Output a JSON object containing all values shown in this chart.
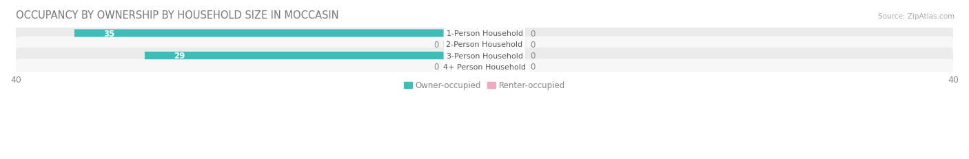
{
  "title": "OCCUPANCY BY OWNERSHIP BY HOUSEHOLD SIZE IN MOCCASIN",
  "source": "Source: ZipAtlas.com",
  "categories": [
    "1-Person Household",
    "2-Person Household",
    "3-Person Household",
    "4+ Person Household"
  ],
  "owner_values": [
    35,
    0,
    29,
    0
  ],
  "renter_values": [
    0,
    0,
    0,
    0
  ],
  "owner_color": "#3dbcb8",
  "renter_color": "#f4a8bc",
  "row_bg_colors": [
    "#ebebeb",
    "#f7f7f7",
    "#ebebeb",
    "#f7f7f7"
  ],
  "xlim": [
    -40,
    40
  ],
  "legend_owner": "Owner-occupied",
  "legend_renter": "Renter-occupied",
  "title_fontsize": 10.5,
  "label_fontsize": 8.5,
  "tick_fontsize": 9,
  "figsize": [
    14.06,
    2.32
  ],
  "dpi": 100,
  "owner_stub": 3.5,
  "renter_stub": 3.5,
  "bar_height": 0.68
}
